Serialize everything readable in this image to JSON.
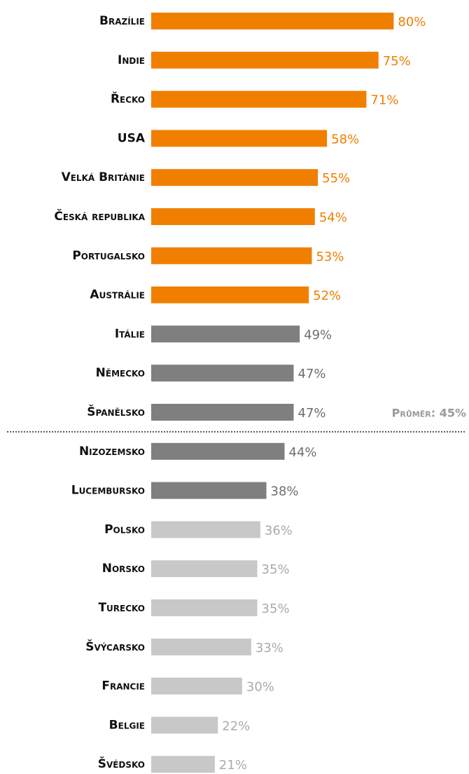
{
  "chart_data": {
    "type": "hbar",
    "categories": [
      "Brazílie",
      "Indie",
      "Řecko",
      "USA",
      "Velká Británie",
      "Česká republika",
      "Portugalsko",
      "Austrálie",
      "Itálie",
      "Německo",
      "Španělsko",
      "Nizozemsko",
      "Lucembursko",
      "Polsko",
      "Norsko",
      "Turecko",
      "Švýcarsko",
      "Francie",
      "Belgie",
      "Švédsko"
    ],
    "values": [
      80,
      75,
      71,
      58,
      55,
      54,
      53,
      52,
      49,
      47,
      47,
      44,
      38,
      36,
      35,
      35,
      33,
      30,
      22,
      21
    ],
    "value_labels": [
      "80%",
      "75%",
      "71%",
      "58%",
      "55%",
      "54%",
      "53%",
      "52%",
      "49%",
      "47%",
      "47%",
      "44%",
      "38%",
      "36%",
      "35%",
      "35%",
      "33%",
      "30%",
      "22%",
      "21%"
    ],
    "colors": [
      "#f07f00",
      "#f07f00",
      "#f07f00",
      "#f07f00",
      "#f07f00",
      "#f07f00",
      "#f07f00",
      "#f07f00",
      "#7f7f7f",
      "#7f7f7f",
      "#7f7f7f",
      "#7f7f7f",
      "#7f7f7f",
      "#c8c8c8",
      "#c8c8c8",
      "#c8c8c8",
      "#c8c8c8",
      "#c8c8c8",
      "#c8c8c8",
      "#c8c8c8"
    ],
    "label_colors": [
      "#f07f00",
      "#f07f00",
      "#f07f00",
      "#f07f00",
      "#f07f00",
      "#f07f00",
      "#f07f00",
      "#f07f00",
      "#6e6e6e",
      "#6e6e6e",
      "#6e6e6e",
      "#6e6e6e",
      "#6e6e6e",
      "#aaaaaa",
      "#aaaaaa",
      "#aaaaaa",
      "#aaaaaa",
      "#aaaaaa",
      "#aaaaaa",
      "#aaaaaa"
    ],
    "average": {
      "value": 45,
      "label": "Průměr: 45%"
    }
  }
}
